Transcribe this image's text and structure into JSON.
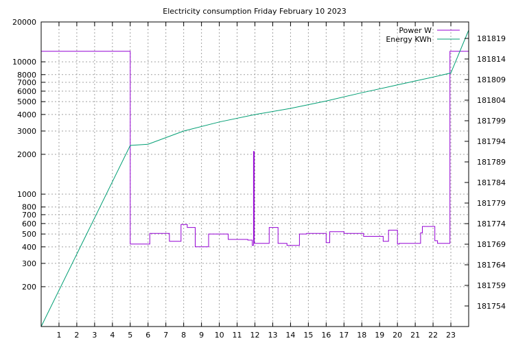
{
  "chart_data": {
    "type": "line",
    "title": "Electricity consumption Friday February 10 2023",
    "xlabel": "",
    "ylabel": "",
    "y2label": "",
    "grid": true,
    "legend_position": "top-right",
    "x_range": [
      0,
      24
    ],
    "x_ticks": [
      1,
      2,
      3,
      4,
      5,
      6,
      7,
      8,
      9,
      10,
      11,
      12,
      13,
      14,
      15,
      16,
      17,
      18,
      19,
      20,
      21,
      22,
      23
    ],
    "y_scale": "log",
    "y_range": [
      100,
      20000
    ],
    "y_ticks": [
      200,
      300,
      400,
      500,
      600,
      700,
      800,
      1000,
      2000,
      3000,
      4000,
      5000,
      6000,
      7000,
      8000,
      10000,
      20000
    ],
    "y2_range": [
      181749,
      181823
    ],
    "y2_ticks": [
      181754,
      181759,
      181764,
      181769,
      181774,
      181779,
      181784,
      181789,
      181794,
      181799,
      181804,
      181809,
      181814,
      181819
    ],
    "series": [
      {
        "name": "Power W",
        "axis": "left",
        "color": "#9400d3",
        "points": [
          [
            0,
            9000
          ],
          [
            0,
            12000
          ],
          [
            5,
            12000
          ],
          [
            5,
            9000
          ],
          [
            5,
            420
          ],
          [
            6.1,
            420
          ],
          [
            6.1,
            505
          ],
          [
            7.2,
            505
          ],
          [
            7.2,
            440
          ],
          [
            7.85,
            440
          ],
          [
            7.85,
            590
          ],
          [
            8.2,
            590
          ],
          [
            8.2,
            560
          ],
          [
            8.65,
            560
          ],
          [
            8.65,
            400
          ],
          [
            9.4,
            400
          ],
          [
            9.4,
            500
          ],
          [
            10.5,
            500
          ],
          [
            10.5,
            455
          ],
          [
            11.6,
            455
          ],
          [
            11.6,
            450
          ],
          [
            11.85,
            450
          ],
          [
            11.85,
            410
          ],
          [
            11.92,
            410
          ],
          [
            11.92,
            2100
          ],
          [
            11.96,
            2100
          ],
          [
            11.96,
            425
          ],
          [
            12.8,
            425
          ],
          [
            12.8,
            560
          ],
          [
            13.3,
            560
          ],
          [
            13.3,
            425
          ],
          [
            13.8,
            425
          ],
          [
            13.8,
            410
          ],
          [
            14.5,
            410
          ],
          [
            14.5,
            500
          ],
          [
            14.9,
            500
          ],
          [
            14.9,
            505
          ],
          [
            16,
            505
          ],
          [
            16,
            430
          ],
          [
            16.2,
            430
          ],
          [
            16.2,
            520
          ],
          [
            17,
            520
          ],
          [
            17,
            505
          ],
          [
            18.1,
            505
          ],
          [
            18.1,
            480
          ],
          [
            19.2,
            480
          ],
          [
            19.2,
            440
          ],
          [
            19.5,
            440
          ],
          [
            19.5,
            535
          ],
          [
            20,
            535
          ],
          [
            20,
            420
          ],
          [
            20.1,
            420
          ],
          [
            20.1,
            425
          ],
          [
            21.3,
            425
          ],
          [
            21.3,
            510
          ],
          [
            21.4,
            510
          ],
          [
            21.4,
            570
          ],
          [
            22.1,
            570
          ],
          [
            22.1,
            445
          ],
          [
            22.25,
            445
          ],
          [
            22.25,
            425
          ],
          [
            22.95,
            425
          ],
          [
            22.95,
            9000
          ],
          [
            22.95,
            12000
          ],
          [
            24,
            12000
          ],
          [
            24,
            9000
          ]
        ]
      },
      {
        "name": "Energy KWh",
        "axis": "right",
        "color": "#009e73",
        "points": [
          [
            0,
            181749
          ],
          [
            5,
            181793
          ],
          [
            6,
            181793.3
          ],
          [
            8,
            181796.5
          ],
          [
            10,
            181798.7
          ],
          [
            12,
            181800.5
          ],
          [
            14,
            181802
          ],
          [
            16,
            181803.8
          ],
          [
            18,
            181805.8
          ],
          [
            20,
            181807.7
          ],
          [
            22,
            181809.6
          ],
          [
            23,
            181810.6
          ],
          [
            24,
            181821
          ]
        ]
      }
    ]
  }
}
